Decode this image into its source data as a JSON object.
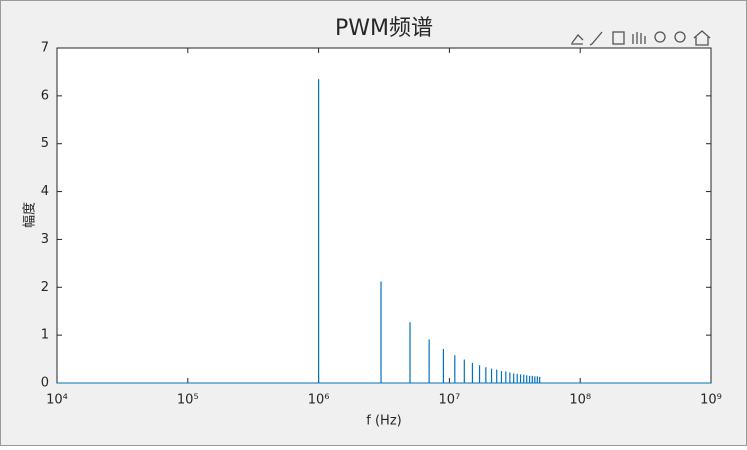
{
  "chart_data": {
    "type": "stem",
    "title": "PWM频谱",
    "x_label": "f (Hz)",
    "y_label": "幅度",
    "x": [
      1000000,
      3000000,
      5000000,
      7000000,
      9000000,
      11000000,
      13000000,
      15000000,
      17000000,
      19000000,
      21000000,
      23000000,
      25000000,
      27000000,
      29000000,
      31000000,
      33000000,
      35000000,
      37000000,
      39000000,
      41000000,
      43000000,
      45000000,
      47000000,
      49000000
    ],
    "values": [
      6.35,
      2.12,
      1.27,
      0.91,
      0.71,
      0.58,
      0.49,
      0.42,
      0.37,
      0.33,
      0.3,
      0.28,
      0.25,
      0.24,
      0.22,
      0.2,
      0.19,
      0.18,
      0.17,
      0.16,
      0.15,
      0.15,
      0.14,
      0.14,
      0.13
    ],
    "color": "#0072bd",
    "x_scale": "log",
    "xlim": [
      10000,
      1000000000
    ],
    "xticks": [
      {
        "value": 10000,
        "label": "10⁴"
      },
      {
        "value": 100000,
        "label": "10⁵"
      },
      {
        "value": 1000000,
        "label": "10⁶"
      },
      {
        "value": 10000000,
        "label": "10⁷"
      },
      {
        "value": 100000000,
        "label": "10⁸"
      },
      {
        "value": 1000000000,
        "label": "10⁹"
      }
    ],
    "ylim": [
      0,
      7
    ],
    "yticks": [
      0,
      1,
      2,
      3,
      4,
      5,
      6,
      7
    ]
  }
}
